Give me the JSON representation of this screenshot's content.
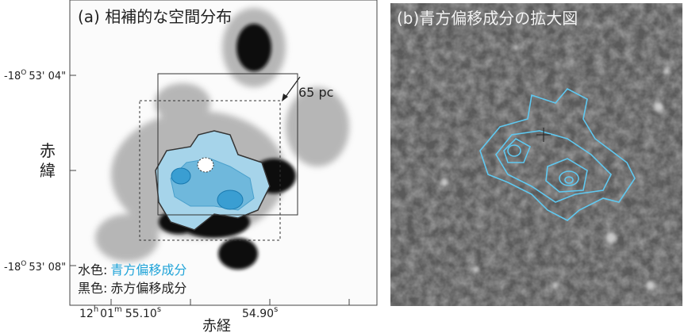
{
  "panel_a": {
    "title": "(a) 相補的な空間分布",
    "y_ticks": [
      {
        "deg": "-18",
        "sup": "O",
        "rest": "53' 04\""
      },
      {
        "deg": "-18",
        "sup": "O",
        "rest": "53' 08\""
      }
    ],
    "y_label": [
      "赤",
      "緯"
    ],
    "x_ticks": [
      {
        "h": "12",
        "h_unit": "h",
        "m": "01",
        "m_unit": "m",
        "s": "55.10",
        "s_unit": "s"
      },
      {
        "s": "54.90",
        "s_unit": "s"
      }
    ],
    "x_label": "赤経",
    "scale_label": "65 pc",
    "legend": [
      {
        "key": "水色:",
        "text": "青方偏移成分"
      },
      {
        "key": "黒色:",
        "text": "赤方偏移成分"
      }
    ]
  },
  "panel_b": {
    "title": "(b)青方偏移成分の拡大図"
  }
}
